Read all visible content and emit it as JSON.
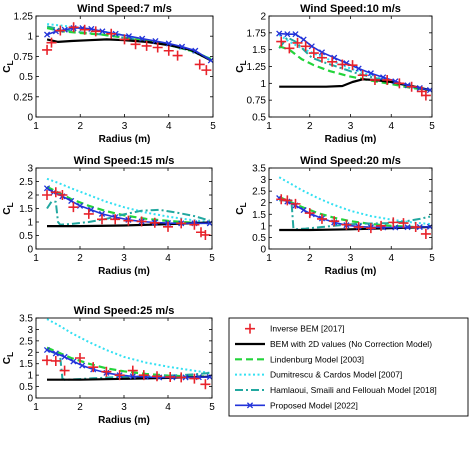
{
  "legend": {
    "entries": [
      {
        "key": "inverse",
        "label": "Inverse BEM [2017]"
      },
      {
        "key": "bem2d",
        "label": "BEM with 2D values (No Correction Model)"
      },
      {
        "key": "lindenburg",
        "label": "Lindenburg Model [2003]"
      },
      {
        "key": "dumitrescu",
        "label": "Dumitrescu & Cardos Model [2007]"
      },
      {
        "key": "hamlaoui",
        "label": "Hamlaoui, Smaili and Fellouah Model  [2018]"
      },
      {
        "key": "proposed",
        "label": "Proposed Model [2022]"
      }
    ]
  },
  "series_colors": {
    "inverse": "#e8232b",
    "bem2d": "#000000",
    "lindenburg": "#22d43a",
    "dumitrescu": "#33e0f2",
    "hamlaoui": "#22a8a0",
    "proposed": "#2233d9"
  },
  "chart_data": [
    {
      "type": "line",
      "title": "Wind Speed:7 m/s",
      "xlabel": "Radius (m)",
      "ylabel": "CL",
      "xlim": [
        1,
        5
      ],
      "ylim": [
        0,
        1.25
      ],
      "xticks": [
        1,
        2,
        3,
        4,
        5
      ],
      "yticks": [
        0,
        0.25,
        0.5,
        0.75,
        1,
        1.25
      ],
      "ytick_labels": [
        "0",
        "0.25",
        "0.5",
        "0.75",
        "1",
        "1.25"
      ],
      "series": [
        {
          "key": "dumitrescu",
          "x": [
            1.25,
            1.6,
            2,
            2.5,
            3,
            3.5,
            4,
            4.5,
            4.95
          ],
          "y": [
            1.15,
            1.13,
            1.1,
            1.06,
            1.01,
            0.95,
            0.89,
            0.82,
            0.7
          ]
        },
        {
          "key": "hamlaoui",
          "x": [
            1.25,
            1.6,
            2,
            2.5,
            3,
            3.5,
            4,
            4.5,
            4.95
          ],
          "y": [
            1.12,
            1.08,
            1.05,
            1.02,
            0.98,
            0.94,
            0.89,
            0.82,
            0.72
          ]
        },
        {
          "key": "lindenburg",
          "x": [
            1.25,
            1.6,
            2,
            2.5,
            3,
            3.5,
            4,
            4.5,
            4.95
          ],
          "y": [
            1.1,
            1.06,
            1.04,
            1.02,
            0.98,
            0.94,
            0.89,
            0.82,
            0.72
          ]
        },
        {
          "key": "bem2d",
          "x": [
            1.25,
            1.5,
            1.8,
            2.2,
            2.6,
            3,
            3.5,
            4,
            4.5,
            4.95
          ],
          "y": [
            0.96,
            0.93,
            0.94,
            0.95,
            0.96,
            0.95,
            0.93,
            0.89,
            0.83,
            0.7
          ]
        },
        {
          "key": "proposed",
          "marker": "x",
          "x": [
            1.25,
            1.45,
            1.65,
            1.85,
            2.05,
            2.25,
            2.5,
            2.8,
            3.1,
            3.4,
            3.7,
            4,
            4.3,
            4.6,
            4.95
          ],
          "y": [
            1.02,
            1.06,
            1.08,
            1.1,
            1.1,
            1.09,
            1.06,
            1.03,
            1.0,
            0.97,
            0.94,
            0.91,
            0.87,
            0.82,
            0.7
          ]
        },
        {
          "key": "inverse",
          "marker": "+",
          "line": false,
          "x": [
            1.25,
            1.35,
            1.55,
            1.85,
            2.1,
            2.35,
            2.7,
            3,
            3.25,
            3.5,
            3.75,
            4,
            4.2,
            4.7,
            4.85
          ],
          "y": [
            0.83,
            0.92,
            1.07,
            1.11,
            1.08,
            1.06,
            1.03,
            0.96,
            0.9,
            0.88,
            0.86,
            0.82,
            0.76,
            0.65,
            0.58
          ]
        }
      ]
    },
    {
      "type": "line",
      "title": "Wind Speed:10 m/s",
      "xlabel": "Radius (m)",
      "ylabel": "CL",
      "xlim": [
        1,
        5
      ],
      "ylim": [
        0.5,
        2
      ],
      "xticks": [
        1,
        2,
        3,
        4,
        5
      ],
      "yticks": [
        0.5,
        0.75,
        1,
        1.25,
        1.5,
        1.75,
        2
      ],
      "ytick_labels": [
        "0.5",
        "0.75",
        "1",
        "1.25",
        "1.5",
        "1.75",
        "2"
      ],
      "series": [
        {
          "key": "dumitrescu",
          "x": [
            1.25,
            1.5,
            1.8,
            2.2,
            2.6,
            3,
            3.5,
            4,
            4.5,
            4.95
          ],
          "y": [
            1.72,
            1.62,
            1.52,
            1.42,
            1.32,
            1.22,
            1.12,
            1.02,
            0.94,
            0.9
          ]
        },
        {
          "key": "hamlaoui",
          "x": [
            1.25,
            1.45,
            1.65,
            1.85,
            2.05,
            2.4,
            2.8,
            3.2,
            3.6,
            4,
            4.5,
            4.95
          ],
          "y": [
            1.52,
            1.68,
            1.62,
            1.5,
            1.38,
            1.3,
            1.22,
            1.14,
            1.08,
            1.02,
            0.95,
            0.9
          ]
        },
        {
          "key": "lindenburg",
          "x": [
            1.25,
            1.5,
            1.8,
            2.1,
            2.5,
            3,
            3.5,
            4,
            4.5,
            4.95
          ],
          "y": [
            1.55,
            1.5,
            1.36,
            1.27,
            1.18,
            1.1,
            1.04,
            0.99,
            0.93,
            0.9
          ]
        },
        {
          "key": "bem2d",
          "x": [
            1.25,
            1.8,
            2.4,
            2.8,
            3.05,
            3.3,
            3.6,
            4,
            4.5,
            4.95
          ],
          "y": [
            0.95,
            0.95,
            0.95,
            0.96,
            1.02,
            1.06,
            1.05,
            1.02,
            0.96,
            0.9
          ]
        },
        {
          "key": "proposed",
          "marker": "x",
          "x": [
            1.25,
            1.45,
            1.65,
            1.85,
            2.05,
            2.3,
            2.6,
            2.9,
            3.2,
            3.5,
            3.8,
            4.1,
            4.4,
            4.7,
            4.95
          ],
          "y": [
            1.74,
            1.73,
            1.73,
            1.65,
            1.55,
            1.46,
            1.38,
            1.3,
            1.22,
            1.15,
            1.09,
            1.03,
            0.97,
            0.93,
            0.9
          ]
        },
        {
          "key": "inverse",
          "marker": "+",
          "line": false,
          "x": [
            1.3,
            1.5,
            1.7,
            1.9,
            2.1,
            2.3,
            2.55,
            2.8,
            3.05,
            3.3,
            3.6,
            3.9,
            4.2,
            4.5,
            4.75,
            4.85
          ],
          "y": [
            1.62,
            1.52,
            1.6,
            1.55,
            1.45,
            1.38,
            1.32,
            1.28,
            1.27,
            1.12,
            1.05,
            1.05,
            1.0,
            0.95,
            0.88,
            0.82
          ]
        }
      ]
    },
    {
      "type": "line",
      "title": "Wind Speed:15 m/s",
      "xlabel": "Radius (m)",
      "ylabel": "CL",
      "xlim": [
        1,
        5
      ],
      "ylim": [
        0,
        3
      ],
      "xticks": [
        1,
        2,
        3,
        4,
        5
      ],
      "yticks": [
        0,
        0.5,
        1,
        1.5,
        2,
        2.5,
        3
      ],
      "ytick_labels": [
        "0",
        "0.5",
        "1",
        "1.5",
        "2",
        "2.5",
        "3"
      ],
      "series": [
        {
          "key": "dumitrescu",
          "x": [
            1.25,
            1.5,
            1.8,
            2.2,
            2.6,
            3,
            3.5,
            4,
            4.5,
            4.95
          ],
          "y": [
            2.6,
            2.45,
            2.25,
            2.0,
            1.75,
            1.55,
            1.35,
            1.2,
            1.08,
            1.0
          ]
        },
        {
          "key": "lindenburg",
          "x": [
            1.25,
            1.5,
            1.8,
            2.2,
            2.6,
            3,
            3.5,
            4,
            4.5,
            4.95
          ],
          "y": [
            2.3,
            2.1,
            1.85,
            1.6,
            1.4,
            1.25,
            1.12,
            1.04,
            0.98,
            0.95
          ]
        },
        {
          "key": "hamlaoui",
          "x": [
            1.25,
            1.35,
            1.45,
            1.5,
            1.55,
            1.8,
            2.2,
            2.6,
            3,
            3.4,
            3.8,
            4.2,
            4.6,
            4.95
          ],
          "y": [
            1.5,
            1.75,
            1.75,
            1.0,
            0.9,
            0.93,
            1.0,
            1.12,
            1.28,
            1.42,
            1.45,
            1.35,
            1.22,
            1.05
          ]
        },
        {
          "key": "bem2d",
          "x": [
            1.25,
            2,
            3,
            4,
            4.95
          ],
          "y": [
            0.85,
            0.85,
            0.87,
            0.92,
            0.98
          ]
        },
        {
          "key": "proposed",
          "marker": "x",
          "x": [
            1.25,
            1.4,
            1.6,
            1.8,
            2,
            2.25,
            2.5,
            2.8,
            3.1,
            3.4,
            3.7,
            4,
            4.3,
            4.6,
            4.95
          ],
          "y": [
            2.25,
            2.1,
            1.95,
            1.78,
            1.6,
            1.45,
            1.3,
            1.18,
            1.08,
            1.02,
            0.98,
            0.96,
            0.95,
            0.95,
            0.95
          ]
        },
        {
          "key": "inverse",
          "marker": "+",
          "line": false,
          "x": [
            1.25,
            1.45,
            1.6,
            1.85,
            2.2,
            2.5,
            2.8,
            3.1,
            3.4,
            3.7,
            4,
            4.3,
            4.6,
            4.75,
            4.85
          ],
          "y": [
            2.0,
            2.1,
            2.0,
            1.55,
            1.3,
            1.1,
            1.1,
            1.05,
            1.02,
            0.97,
            0.82,
            0.95,
            0.9,
            0.62,
            0.52
          ]
        }
      ]
    },
    {
      "type": "line",
      "title": "Wind Speed:20 m/s",
      "xlabel": "Radius (m)",
      "ylabel": "CL",
      "xlim": [
        1,
        5
      ],
      "ylim": [
        0,
        3.5
      ],
      "xticks": [
        1,
        2,
        3,
        4,
        5
      ],
      "yticks": [
        0,
        0.5,
        1,
        1.5,
        2,
        2.5,
        3,
        3.5
      ],
      "ytick_labels": [
        "0",
        "0.5",
        "1",
        "1.5",
        "2",
        "2.5",
        "3",
        "3.5"
      ],
      "series": [
        {
          "key": "dumitrescu",
          "x": [
            1.25,
            1.5,
            1.8,
            2.2,
            2.6,
            3,
            3.5,
            4,
            4.5,
            4.95
          ],
          "y": [
            3.1,
            2.85,
            2.55,
            2.2,
            1.9,
            1.65,
            1.42,
            1.27,
            1.15,
            1.08
          ]
        },
        {
          "key": "lindenburg",
          "x": [
            1.25,
            1.5,
            1.8,
            2.2,
            2.6,
            3,
            3.5,
            4,
            4.5,
            4.95
          ],
          "y": [
            2.25,
            2.05,
            1.82,
            1.55,
            1.35,
            1.2,
            1.08,
            1.0,
            0.96,
            0.95
          ]
        },
        {
          "key": "hamlaoui",
          "x": [
            1.25,
            1.45,
            1.55,
            1.6,
            1.65,
            1.9,
            2.3,
            2.7,
            3.1,
            3.5,
            3.9,
            4.3,
            4.7,
            4.95
          ],
          "y": [
            2.1,
            2.1,
            2.1,
            0.9,
            0.85,
            0.88,
            0.95,
            1.02,
            1.08,
            1.1,
            1.12,
            1.18,
            1.3,
            1.4
          ]
        },
        {
          "key": "bem2d",
          "x": [
            1.25,
            2,
            3,
            4,
            4.95
          ],
          "y": [
            0.82,
            0.82,
            0.85,
            0.9,
            0.95
          ]
        },
        {
          "key": "proposed",
          "marker": "x",
          "x": [
            1.25,
            1.45,
            1.65,
            1.85,
            2.05,
            2.3,
            2.6,
            2.9,
            3.2,
            3.5,
            3.8,
            4.1,
            4.4,
            4.7,
            4.95
          ],
          "y": [
            2.2,
            2.05,
            1.88,
            1.68,
            1.5,
            1.32,
            1.15,
            1.03,
            0.97,
            0.94,
            0.93,
            0.93,
            0.94,
            0.95,
            0.96
          ]
        },
        {
          "key": "inverse",
          "marker": "+",
          "line": false,
          "x": [
            1.3,
            1.45,
            1.65,
            2.0,
            2.3,
            2.6,
            2.9,
            3.2,
            3.5,
            3.75,
            4.05,
            4.3,
            4.6,
            4.85
          ],
          "y": [
            2.15,
            2.1,
            1.95,
            1.55,
            1.3,
            1.2,
            1.05,
            0.95,
            0.9,
            1.0,
            1.15,
            1.12,
            0.95,
            0.65
          ]
        }
      ]
    },
    {
      "type": "line",
      "title": "Wind Speed:25 m/s",
      "xlabel": "Radius (m)",
      "ylabel": "CL",
      "xlim": [
        1,
        5
      ],
      "ylim": [
        0,
        3.5
      ],
      "xticks": [
        1,
        2,
        3,
        4,
        5
      ],
      "yticks": [
        0,
        0.5,
        1,
        1.5,
        2,
        2.5,
        3,
        3.5
      ],
      "ytick_labels": [
        "0",
        "0.5",
        "1",
        "1.5",
        "2",
        "2.5",
        "3",
        "3.5"
      ],
      "series": [
        {
          "key": "dumitrescu",
          "x": [
            1.25,
            1.5,
            1.8,
            2.2,
            2.6,
            3,
            3.5,
            4,
            4.5,
            4.95
          ],
          "y": [
            3.45,
            3.2,
            2.85,
            2.45,
            2.1,
            1.8,
            1.55,
            1.37,
            1.22,
            1.1
          ]
        },
        {
          "key": "lindenburg",
          "x": [
            1.25,
            1.5,
            1.8,
            2.2,
            2.6,
            3,
            3.5,
            4,
            4.5,
            4.95
          ],
          "y": [
            2.2,
            2.0,
            1.75,
            1.5,
            1.3,
            1.17,
            1.05,
            0.98,
            0.95,
            0.94
          ]
        },
        {
          "key": "hamlaoui",
          "x": [
            1.25,
            1.45,
            1.55,
            1.6,
            1.65,
            1.9,
            2.3,
            2.7,
            3.1,
            3.5,
            3.9,
            4.3,
            4.7,
            4.95
          ],
          "y": [
            2.1,
            1.95,
            1.8,
            0.85,
            0.8,
            0.82,
            0.86,
            0.9,
            0.93,
            0.95,
            0.97,
            1.0,
            1.05,
            1.1
          ]
        },
        {
          "key": "bem2d",
          "x": [
            1.25,
            2,
            3,
            4,
            4.95
          ],
          "y": [
            0.8,
            0.8,
            0.84,
            0.88,
            0.93
          ]
        },
        {
          "key": "proposed",
          "marker": "x",
          "x": [
            1.25,
            1.45,
            1.65,
            1.85,
            2.05,
            2.3,
            2.6,
            2.9,
            3.2,
            3.5,
            3.8,
            4.1,
            4.4,
            4.7,
            4.95
          ],
          "y": [
            2.1,
            1.95,
            1.8,
            1.6,
            1.42,
            1.25,
            1.1,
            1.0,
            0.95,
            0.92,
            0.9,
            0.9,
            0.9,
            0.91,
            0.92
          ]
        },
        {
          "key": "inverse",
          "marker": "+",
          "line": false,
          "x": [
            1.25,
            1.45,
            1.65,
            2.0,
            2.3,
            2.6,
            2.9,
            3.2,
            3.45,
            3.75,
            4.05,
            4.3,
            4.6,
            4.85
          ],
          "y": [
            1.65,
            1.62,
            1.2,
            1.75,
            1.35,
            1.15,
            1.0,
            1.2,
            1.0,
            0.95,
            0.92,
            0.9,
            0.85,
            0.6
          ]
        }
      ]
    }
  ]
}
